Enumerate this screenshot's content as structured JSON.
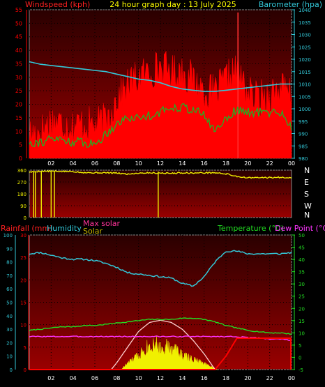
{
  "title": "24 hour graph day : 13 July 2025",
  "labels": {
    "windspeed": "Windspeed (kph)",
    "barometer": "Barometer (hpa)",
    "rainfall": "Rainfall (mm)",
    "humidity": "Humidity",
    "max_solar": "Max solar",
    "solar": "Solar",
    "temperature": "Temperature (°C)",
    "dew_point": "Dew Point (°C)"
  },
  "colors": {
    "background": "#000000",
    "plot_top": "#2a0000",
    "plot_bottom": "#9a0000",
    "wind": "#ff0000",
    "gust_spike": "#ff3030",
    "barometer": "#33c8d8",
    "green": "#22b022",
    "direction": "#f0f000",
    "title": "#ffff00",
    "humidity": "#33c8d8",
    "max_solar": "#ff3399",
    "solar": "#f0f000",
    "temperature": "#22dd22",
    "dew_point": "#ff33ff",
    "rain": "#ff0000"
  },
  "chart_data": [
    {
      "type": "line",
      "name": "wind-barometer",
      "x_tick_labels": [
        "02",
        "04",
        "06",
        "08",
        "10",
        "12",
        "14",
        "16",
        "18",
        "20",
        "22",
        "00"
      ],
      "x_range_hours": [
        0,
        24
      ],
      "left_axis": {
        "label": "Windspeed (kph)",
        "range": [
          0,
          55
        ],
        "ticks": [
          0,
          5,
          10,
          15,
          20,
          25,
          30,
          35,
          40,
          45,
          50,
          55
        ]
      },
      "right_axis": {
        "label": "Barometer (hpa)",
        "range": [
          980,
          1040
        ],
        "ticks": [
          980,
          985,
          990,
          995,
          1000,
          1005,
          1010,
          1015,
          1020,
          1025,
          1030,
          1035,
          1040
        ]
      },
      "series": [
        {
          "name": "Barometer (hpa)",
          "axis": "right",
          "color": "#33c8d8",
          "x": [
            0,
            1,
            2,
            3,
            4,
            5,
            6,
            7,
            8,
            9,
            10,
            11,
            12,
            13,
            14,
            15,
            16,
            17,
            18,
            19,
            20,
            21,
            22,
            23,
            24
          ],
          "values": [
            1019,
            1018,
            1017.5,
            1017,
            1016.5,
            1016,
            1015.5,
            1015,
            1014,
            1013,
            1012,
            1011.5,
            1010.5,
            1009,
            1008,
            1007.5,
            1007,
            1007,
            1007.5,
            1008,
            1008.5,
            1009,
            1009.5,
            1010,
            1010
          ]
        },
        {
          "name": "wind green line",
          "axis": "left",
          "color": "#22b022",
          "x": [
            0,
            1,
            2,
            3,
            4,
            5,
            6,
            7,
            8,
            9,
            10,
            11,
            12,
            13,
            14,
            15,
            16,
            17,
            18,
            19,
            20,
            21,
            22,
            23,
            24
          ],
          "values": [
            6,
            6,
            7,
            7,
            6,
            6,
            5,
            9,
            13,
            15,
            15,
            16,
            17,
            19,
            19,
            18,
            16,
            10,
            15,
            18,
            17,
            17,
            17,
            17,
            12
          ]
        },
        {
          "name": "wind red area",
          "axis": "left",
          "color": "#ff0000",
          "x": [
            0,
            1,
            2,
            3,
            4,
            5,
            6,
            7,
            8,
            9,
            10,
            11,
            12,
            13,
            14,
            15,
            16,
            17,
            18,
            19,
            20,
            21,
            22,
            23,
            24
          ],
          "values": [
            9,
            10,
            14,
            13,
            12,
            13,
            12,
            14,
            22,
            27,
            30,
            32,
            34,
            32,
            32,
            29,
            25,
            24,
            29,
            33,
            24,
            22,
            24,
            26,
            23
          ]
        }
      ],
      "gust_peak": {
        "x": 19.1,
        "value": 54
      }
    },
    {
      "type": "line",
      "name": "wind-direction",
      "x_range_hours": [
        0,
        24
      ],
      "y_axis": {
        "range": [
          0,
          360
        ],
        "ticks": [
          0,
          90,
          180,
          270,
          360
        ]
      },
      "compass_labels": [
        "N",
        "W",
        "S",
        "E",
        "N"
      ],
      "series": [
        {
          "name": "direction",
          "color": "#f0f000",
          "x": [
            0,
            1,
            2,
            3,
            4,
            5,
            6,
            7,
            8,
            9,
            10,
            11,
            12,
            13,
            14,
            15,
            16,
            17,
            18,
            19,
            20,
            21,
            22,
            23,
            24
          ],
          "values": [
            345,
            352,
            352,
            350,
            350,
            342,
            340,
            340,
            338,
            330,
            338,
            340,
            338,
            336,
            340,
            338,
            340,
            340,
            332,
            312,
            302,
            303,
            303,
            305,
            304
          ]
        }
      ],
      "dips": [
        {
          "x": 0.4,
          "to": 0
        },
        {
          "x": 0.55,
          "to": 0
        },
        {
          "x": 1.1,
          "to": 0
        },
        {
          "x": 2.0,
          "to": 0
        },
        {
          "x": 2.3,
          "to": 0
        },
        {
          "x": 11.8,
          "to": 0
        }
      ]
    },
    {
      "type": "line",
      "name": "rain-humidity-solar-temperature",
      "x_tick_labels": [
        "02",
        "04",
        "06",
        "08",
        "10",
        "12",
        "14",
        "16",
        "18",
        "20",
        "22",
        "00"
      ],
      "x_range_hours": [
        0,
        24
      ],
      "rainfall_axis": {
        "label": "Rainfall (mm)",
        "range": [
          0,
          30
        ],
        "ticks": [
          0,
          5,
          10,
          15,
          20,
          25,
          30
        ]
      },
      "humidity_axis": {
        "label": "Humidity",
        "range": [
          0,
          100
        ],
        "ticks": [
          0,
          10,
          20,
          30,
          40,
          50,
          60,
          70,
          80,
          90,
          100
        ]
      },
      "temperature_axis": {
        "label": "Temperature (°C)",
        "range": [
          -5,
          50
        ],
        "ticks": [
          -5,
          0,
          5,
          10,
          15,
          20,
          25,
          30,
          35,
          40,
          45,
          50
        ]
      },
      "series": [
        {
          "name": "Humidity",
          "axis": "humidity",
          "color": "#33c8d8",
          "x": [
            0,
            1,
            2,
            3,
            4,
            5,
            6,
            7,
            8,
            9,
            10,
            11,
            12,
            13,
            14,
            15,
            16,
            17,
            18,
            19,
            20,
            21,
            22,
            23,
            24
          ],
          "values": [
            86,
            87,
            85,
            83,
            82,
            82,
            81,
            79,
            76,
            72,
            71,
            70,
            69,
            68,
            64,
            62,
            69,
            80,
            88,
            88,
            86,
            86,
            86,
            86,
            87
          ]
        },
        {
          "name": "Temperature (°C)",
          "axis": "temperature",
          "color": "#22dd22",
          "x": [
            0,
            1,
            2,
            3,
            4,
            5,
            6,
            7,
            8,
            9,
            10,
            11,
            12,
            13,
            14,
            15,
            16,
            17,
            18,
            19,
            20,
            21,
            22,
            23,
            24
          ],
          "values": [
            11,
            11.5,
            12,
            12.5,
            12.5,
            13,
            13,
            13.5,
            14,
            14.5,
            15,
            15.5,
            15.5,
            15.5,
            16,
            16,
            15.5,
            14.5,
            13,
            12,
            11,
            10.5,
            10,
            10,
            9.5
          ]
        },
        {
          "name": "Dew Point (°C)",
          "axis": "temperature",
          "color": "#ff33ff",
          "x": [
            0,
            1,
            2,
            3,
            4,
            5,
            6,
            7,
            8,
            9,
            10,
            11,
            12,
            13,
            14,
            15,
            16,
            17,
            18,
            19,
            20,
            21,
            22,
            23,
            24
          ],
          "values": [
            8.5,
            8.5,
            8.5,
            8.5,
            8.5,
            8.5,
            8.5,
            8.5,
            8.5,
            8.5,
            8.5,
            8.5,
            8.5,
            8.5,
            8.5,
            8.5,
            8.5,
            8.5,
            8.5,
            8.5,
            8.0,
            8.0,
            7.5,
            7.5,
            7.0
          ]
        },
        {
          "name": "Max solar",
          "axis": "rainfall",
          "color": "#ffd0d0",
          "x": [
            7.5,
            8,
            9,
            10,
            11,
            12,
            13,
            14,
            15,
            16,
            17
          ],
          "values": [
            0,
            1.5,
            5,
            8.5,
            10.5,
            11,
            10.5,
            9,
            6.5,
            3.5,
            0
          ]
        },
        {
          "name": "Solar",
          "axis": "rainfall",
          "color": "#f0f000",
          "fill": true,
          "x": [
            8.5,
            9,
            9.5,
            10,
            10.5,
            11,
            11.5,
            12,
            12.5,
            13,
            13.5,
            14,
            14.5,
            15,
            15.5,
            16,
            16.5,
            17,
            17.2
          ],
          "values": [
            0.3,
            1.5,
            2.5,
            3.5,
            5,
            6,
            6.5,
            5,
            6,
            4.5,
            5,
            3.5,
            3,
            2.5,
            2,
            1.5,
            1,
            0.3,
            0
          ]
        },
        {
          "name": "Rainfall (mm)",
          "axis": "rainfall",
          "color": "#ff0000",
          "x": [
            0,
            16,
            17,
            18,
            19,
            20,
            21,
            22,
            23,
            24
          ],
          "values": [
            0,
            0,
            0,
            3,
            7,
            7,
            7,
            7,
            7,
            7
          ]
        }
      ]
    }
  ]
}
